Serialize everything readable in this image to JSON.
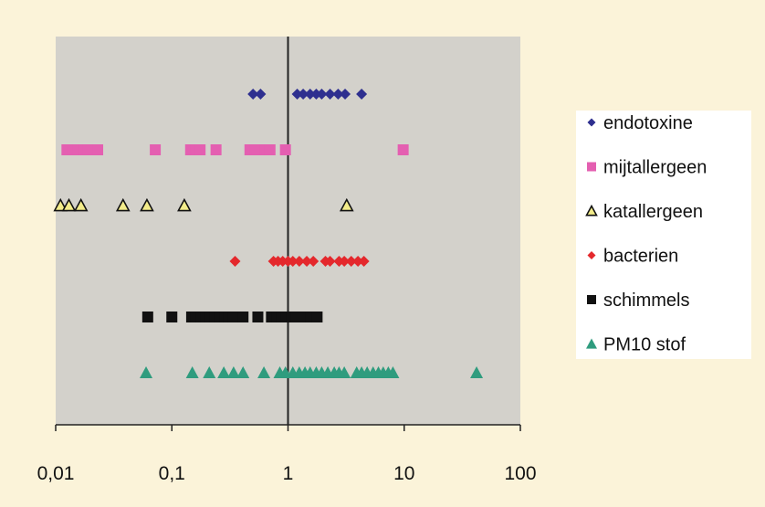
{
  "colors": {
    "background": "#fbf3d9",
    "plot_area": "#d3d1cb",
    "legend_box": "#ffffff",
    "axis": "#222222"
  },
  "chart_data": {
    "type": "scatter",
    "x_scale": "log",
    "xlim": [
      0.01,
      100
    ],
    "x_ticks": [
      0.01,
      0.1,
      1,
      10,
      100
    ],
    "x_tick_labels": [
      "0,01",
      "0,1",
      "1",
      "10",
      "100"
    ],
    "reference_line_x": 1,
    "grid": false,
    "legend_position": "right",
    "series": [
      {
        "name": "endotoxine",
        "marker": "diamond",
        "color": "#2e2f8f",
        "stroke": "#2e2f8f",
        "x": [
          0.5,
          0.58,
          1.2,
          1.35,
          1.55,
          1.75,
          1.95,
          2.3,
          2.7,
          3.1,
          4.3
        ]
      },
      {
        "name": "mijtallergeen",
        "marker": "square",
        "color": "#e45fb1",
        "stroke": "#e45fb1",
        "x": [
          0.0125,
          0.014,
          0.0155,
          0.0175,
          0.019,
          0.021,
          0.023,
          0.072,
          0.145,
          0.16,
          0.175,
          0.24,
          0.47,
          0.52,
          0.58,
          0.64,
          0.7,
          0.95,
          9.8
        ]
      },
      {
        "name": "katallergeen",
        "marker": "triangle",
        "color": "#f3ec8a",
        "stroke": "#111111",
        "x": [
          0.011,
          0.013,
          0.0165,
          0.038,
          0.061,
          0.128,
          3.2
        ]
      },
      {
        "name": "bacterien",
        "marker": "diamond",
        "color": "#e4282c",
        "stroke": "#e4282c",
        "x": [
          0.35,
          0.75,
          0.82,
          0.9,
          1.0,
          1.1,
          1.25,
          1.45,
          1.65,
          2.1,
          2.3,
          2.75,
          3.05,
          3.5,
          4.0,
          4.5
        ]
      },
      {
        "name": "schimmels",
        "marker": "square",
        "color": "#111111",
        "stroke": "#111111",
        "x": [
          0.062,
          0.1,
          0.148,
          0.162,
          0.178,
          0.195,
          0.215,
          0.235,
          0.26,
          0.285,
          0.31,
          0.34,
          0.375,
          0.41,
          0.55,
          0.72,
          0.8,
          0.88,
          0.97,
          1.07,
          1.18,
          1.3,
          1.43,
          1.58,
          1.78
        ]
      },
      {
        "name": "PM10 stof",
        "marker": "triangle-up",
        "color": "#2f9c7e",
        "stroke": "#2f9c7e",
        "x": [
          0.06,
          0.15,
          0.21,
          0.28,
          0.34,
          0.41,
          0.62,
          0.85,
          0.95,
          1.1,
          1.25,
          1.4,
          1.55,
          1.75,
          1.95,
          2.2,
          2.5,
          2.75,
          3.05,
          3.9,
          4.3,
          4.8,
          5.4,
          6.0,
          6.6,
          7.3,
          8.0,
          42.0
        ]
      }
    ]
  }
}
